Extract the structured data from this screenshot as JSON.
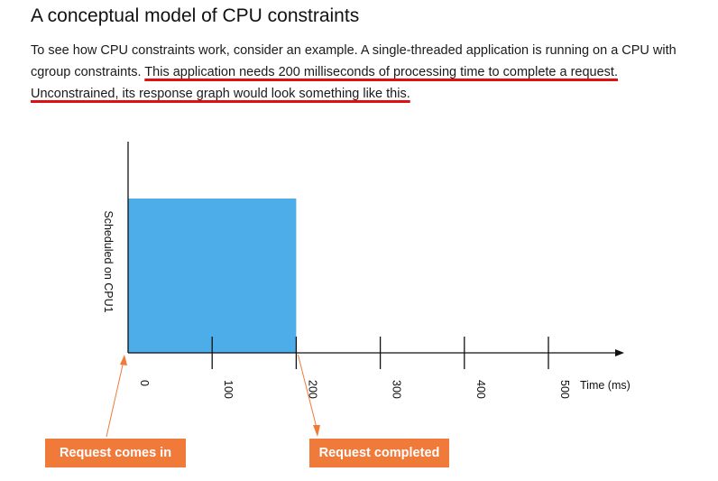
{
  "heading": "A conceptual model of CPU constraints",
  "paragraph": {
    "intro": "To see how CPU constraints work, consider an example. A single-threaded application is running on a CPU with cgroup constraints.",
    "hl1": "This application needs 200 milliseconds of processing time to complete a request.",
    "hl2": "Unconstrained, its response graph would look something like this.",
    "underline_color": "#e01010"
  },
  "chart_data": {
    "type": "area",
    "xlabel": "Time (ms)",
    "ylabel": "Scheduled on CPU1",
    "x_ticks": [
      "0",
      "100",
      "200",
      "300",
      "400",
      "500"
    ],
    "x_range": [
      0,
      500
    ],
    "series": [
      {
        "x_start": 0,
        "x_end": 200,
        "level": 1,
        "color": "#4dade9"
      }
    ],
    "annotations": [
      {
        "label": "Request comes in",
        "x": 0,
        "color": "#f07a3a"
      },
      {
        "label": "Request completed",
        "x": 200,
        "color": "#f07a3a"
      }
    ]
  }
}
